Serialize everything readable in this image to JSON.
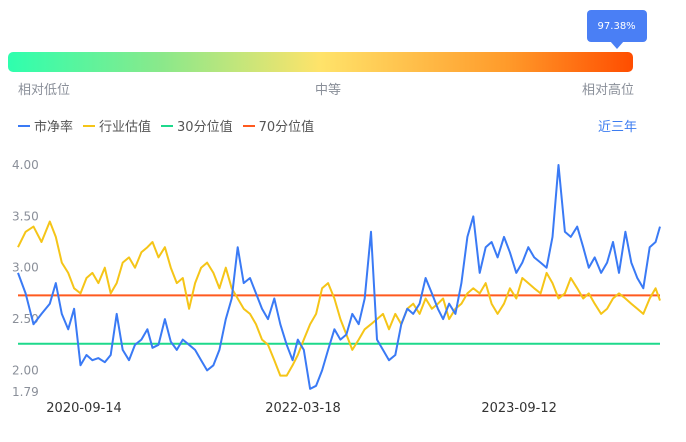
{
  "gauge": {
    "value_label": "97.38%",
    "percentile": 97.38,
    "low_label": "相对低位",
    "mid_label": "中等",
    "high_label": "相对高位"
  },
  "legend": [
    {
      "label": "市净率",
      "color": "#3a7af5"
    },
    {
      "label": "行业估值",
      "color": "#f5c518"
    },
    {
      "label": "30分位值",
      "color": "#1ed98c"
    },
    {
      "label": "70分位值",
      "color": "#ff5a1f"
    }
  ],
  "period_label": "近三年",
  "chart_data": {
    "type": "line",
    "title": "",
    "xlabel": "",
    "ylabel": "",
    "x_ticks": [
      "2020-09-14",
      "2022-03-18",
      "2023-09-12"
    ],
    "x_range": [
      "2020-04-01",
      "2024-08-31"
    ],
    "y_ticks": [
      "4.00",
      "3.50",
      "3.00",
      "2.50",
      "2.00",
      "1.79"
    ],
    "ylim": [
      1.79,
      4.0
    ],
    "grid": false,
    "legend_position": "top-left",
    "series": [
      {
        "name": "市净率",
        "color": "#3a7af5",
        "x": [
          "2020-04-01",
          "2020-04-20",
          "2020-05-10",
          "2020-05-30",
          "2020-06-20",
          "2020-07-05",
          "2020-07-20",
          "2020-08-05",
          "2020-08-20",
          "2020-09-05",
          "2020-09-20",
          "2020-10-05",
          "2020-10-20",
          "2020-11-05",
          "2020-11-20",
          "2020-12-05",
          "2020-12-20",
          "2021-01-05",
          "2021-01-20",
          "2021-02-05",
          "2021-02-20",
          "2021-03-05",
          "2021-03-20",
          "2021-04-05",
          "2021-04-20",
          "2021-05-05",
          "2021-05-20",
          "2021-06-05",
          "2021-06-20",
          "2021-07-05",
          "2021-07-20",
          "2021-08-05",
          "2021-08-20",
          "2021-09-05",
          "2021-09-20",
          "2021-10-05",
          "2021-10-20",
          "2021-11-05",
          "2021-11-20",
          "2021-12-05",
          "2021-12-20",
          "2022-01-05",
          "2022-01-20",
          "2022-02-05",
          "2022-02-20",
          "2022-03-05",
          "2022-03-20",
          "2022-04-05",
          "2022-04-20",
          "2022-05-05",
          "2022-05-20",
          "2022-06-05",
          "2022-06-20",
          "2022-07-05",
          "2022-07-20",
          "2022-08-05",
          "2022-08-20",
          "2022-09-05",
          "2022-09-20",
          "2022-10-05",
          "2022-10-20",
          "2022-11-05",
          "2022-11-20",
          "2022-12-05",
          "2022-12-20",
          "2023-01-05",
          "2023-01-20",
          "2023-02-05",
          "2023-02-20",
          "2023-03-05",
          "2023-03-20",
          "2023-04-05",
          "2023-04-20",
          "2023-05-05",
          "2023-05-20",
          "2023-06-05",
          "2023-06-20",
          "2023-07-05",
          "2023-07-20",
          "2023-08-05",
          "2023-08-20",
          "2023-09-05",
          "2023-09-20",
          "2023-10-05",
          "2023-10-20",
          "2023-11-05",
          "2023-11-20",
          "2023-12-05",
          "2023-12-20",
          "2024-01-05",
          "2024-01-20",
          "2024-02-05",
          "2024-02-20",
          "2024-03-05",
          "2024-03-20",
          "2024-04-05",
          "2024-04-20",
          "2024-05-05",
          "2024-05-20",
          "2024-06-05",
          "2024-06-20",
          "2024-07-05",
          "2024-07-20",
          "2024-08-05",
          "2024-08-20",
          "2024-08-31"
        ],
        "values": [
          2.95,
          2.75,
          2.45,
          2.55,
          2.65,
          2.85,
          2.55,
          2.4,
          2.6,
          2.05,
          2.15,
          2.1,
          2.12,
          2.08,
          2.15,
          2.55,
          2.2,
          2.1,
          2.25,
          2.3,
          2.4,
          2.22,
          2.25,
          2.5,
          2.28,
          2.2,
          2.3,
          2.25,
          2.2,
          2.1,
          2.0,
          2.05,
          2.2,
          2.5,
          2.7,
          3.2,
          2.85,
          2.9,
          2.75,
          2.6,
          2.5,
          2.7,
          2.45,
          2.25,
          2.1,
          2.3,
          2.2,
          1.82,
          1.85,
          2.0,
          2.2,
          2.4,
          2.3,
          2.35,
          2.55,
          2.45,
          2.7,
          3.35,
          2.3,
          2.2,
          2.1,
          2.15,
          2.45,
          2.6,
          2.55,
          2.65,
          2.9,
          2.75,
          2.6,
          2.5,
          2.65,
          2.55,
          2.85,
          3.3,
          3.5,
          2.95,
          3.2,
          3.25,
          3.1,
          3.3,
          3.15,
          2.95,
          3.05,
          3.2,
          3.1,
          3.05,
          3.0,
          3.3,
          4.0,
          3.35,
          3.3,
          3.4,
          3.2,
          3.0,
          3.1,
          2.95,
          3.05,
          3.25,
          2.95,
          3.35,
          3.05,
          2.9,
          2.8,
          3.2,
          3.25,
          3.4
        ]
      },
      {
        "name": "行业估值",
        "color": "#f5c518",
        "x": [
          "2020-04-01",
          "2020-04-20",
          "2020-05-10",
          "2020-05-30",
          "2020-06-20",
          "2020-07-05",
          "2020-07-20",
          "2020-08-05",
          "2020-08-20",
          "2020-09-05",
          "2020-09-20",
          "2020-10-05",
          "2020-10-20",
          "2020-11-05",
          "2020-11-20",
          "2020-12-05",
          "2020-12-20",
          "2021-01-05",
          "2021-01-20",
          "2021-02-05",
          "2021-02-20",
          "2021-03-05",
          "2021-03-20",
          "2021-04-05",
          "2021-04-20",
          "2021-05-05",
          "2021-05-20",
          "2021-06-05",
          "2021-06-20",
          "2021-07-05",
          "2021-07-20",
          "2021-08-05",
          "2021-08-20",
          "2021-09-05",
          "2021-09-20",
          "2021-10-05",
          "2021-10-20",
          "2021-11-05",
          "2021-11-20",
          "2021-12-05",
          "2021-12-20",
          "2022-01-05",
          "2022-01-20",
          "2022-02-05",
          "2022-02-20",
          "2022-03-05",
          "2022-03-20",
          "2022-04-05",
          "2022-04-20",
          "2022-05-05",
          "2022-05-20",
          "2022-06-05",
          "2022-06-20",
          "2022-07-05",
          "2022-07-20",
          "2022-08-05",
          "2022-08-20",
          "2022-09-05",
          "2022-09-20",
          "2022-10-05",
          "2022-10-20",
          "2022-11-05",
          "2022-11-20",
          "2022-12-05",
          "2022-12-20",
          "2023-01-05",
          "2023-01-20",
          "2023-02-05",
          "2023-02-20",
          "2023-03-05",
          "2023-03-20",
          "2023-04-05",
          "2023-04-20",
          "2023-05-05",
          "2023-05-20",
          "2023-06-05",
          "2023-06-20",
          "2023-07-05",
          "2023-07-20",
          "2023-08-05",
          "2023-08-20",
          "2023-09-05",
          "2023-09-20",
          "2023-10-05",
          "2023-10-20",
          "2023-11-05",
          "2023-11-20",
          "2023-12-05",
          "2023-12-20",
          "2024-01-05",
          "2024-01-20",
          "2024-02-05",
          "2024-02-20",
          "2024-03-05",
          "2024-03-20",
          "2024-04-05",
          "2024-04-20",
          "2024-05-05",
          "2024-05-20",
          "2024-06-05",
          "2024-06-20",
          "2024-07-05",
          "2024-07-20",
          "2024-08-05",
          "2024-08-20",
          "2024-08-31"
        ],
        "values": [
          3.2,
          3.35,
          3.4,
          3.25,
          3.45,
          3.3,
          3.05,
          2.95,
          2.8,
          2.75,
          2.9,
          2.95,
          2.85,
          3.0,
          2.75,
          2.85,
          3.05,
          3.1,
          3.0,
          3.15,
          3.2,
          3.25,
          3.1,
          3.2,
          3.0,
          2.85,
          2.9,
          2.6,
          2.85,
          3.0,
          3.05,
          2.95,
          2.8,
          3.0,
          2.8,
          2.7,
          2.6,
          2.55,
          2.45,
          2.3,
          2.25,
          2.1,
          1.95,
          1.95,
          2.05,
          2.15,
          2.3,
          2.45,
          2.55,
          2.8,
          2.85,
          2.7,
          2.5,
          2.35,
          2.2,
          2.3,
          2.4,
          2.45,
          2.5,
          2.55,
          2.4,
          2.55,
          2.45,
          2.6,
          2.65,
          2.55,
          2.7,
          2.6,
          2.65,
          2.7,
          2.5,
          2.6,
          2.65,
          2.75,
          2.8,
          2.75,
          2.85,
          2.65,
          2.55,
          2.65,
          2.8,
          2.7,
          2.9,
          2.85,
          2.8,
          2.75,
          2.95,
          2.85,
          2.7,
          2.75,
          2.9,
          2.8,
          2.7,
          2.75,
          2.65,
          2.55,
          2.6,
          2.7,
          2.75,
          2.7,
          2.65,
          2.6,
          2.55,
          2.7,
          2.8,
          2.68
        ]
      },
      {
        "name": "30分位值",
        "color": "#1ed98c",
        "x": [
          "2020-04-01",
          "2024-08-31"
        ],
        "values": [
          2.26,
          2.26
        ]
      },
      {
        "name": "70分位值",
        "color": "#ff5a1f",
        "x": [
          "2020-04-01",
          "2024-08-31"
        ],
        "values": [
          2.73,
          2.73
        ]
      }
    ]
  }
}
